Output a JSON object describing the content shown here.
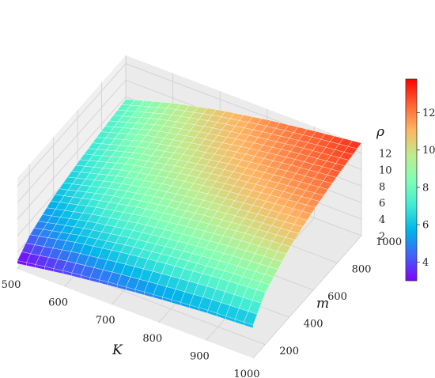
{
  "chart_data": {
    "type": "surface3d",
    "title": "",
    "xlabel": "K",
    "ylabel": "m",
    "zlabel": "ρ",
    "x_ticks": [
      "500",
      "600",
      "700",
      "800",
      "900",
      "1000"
    ],
    "y_ticks": [
      "200",
      "400",
      "600",
      "800",
      "1000"
    ],
    "z_ticks": [
      "2",
      "4",
      "6",
      "8",
      "10",
      "12"
    ],
    "colorbar_ticks": [
      "4",
      "6",
      "8",
      "10",
      "12"
    ],
    "xlim": [
      500,
      1000
    ],
    "ylim": [
      100,
      1000
    ],
    "zlim": [
      2,
      13
    ],
    "colorbar_range": [
      3.0,
      13.8
    ],
    "colormap": "rainbow",
    "grid": true,
    "K": [
      500,
      600,
      700,
      800,
      900,
      1000
    ],
    "m": [
      100,
      200,
      400,
      600,
      800,
      1000
    ],
    "rho": [
      [
        3.0,
        4.4,
        5.8,
        6.6,
        7.2,
        7.7
      ],
      [
        3.9,
        5.6,
        7.2,
        8.2,
        8.9,
        9.4
      ],
      [
        4.6,
        6.5,
        8.3,
        9.4,
        10.1,
        10.7
      ],
      [
        5.2,
        7.2,
        9.1,
        10.3,
        11.1,
        11.7
      ],
      [
        5.7,
        7.8,
        9.8,
        11.0,
        11.9,
        12.5
      ],
      [
        6.0,
        8.2,
        10.3,
        11.6,
        12.5,
        13.2
      ]
    ]
  }
}
